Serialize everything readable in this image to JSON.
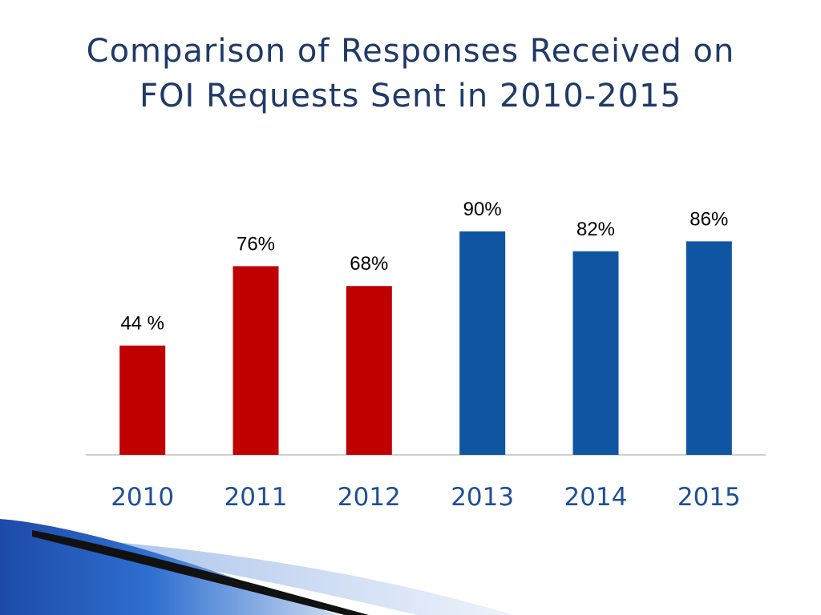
{
  "title": {
    "line1": "Comparison of Responses Received on",
    "line2": "FOI Requests Sent in 2010-2015"
  },
  "colors": {
    "title": "#1f3a68",
    "bar_red": "#c00000",
    "bar_blue": "#0f55a1",
    "axis_text": "#1d4f97",
    "axis_line": "#bfbfbf"
  },
  "chart_data": {
    "type": "bar",
    "title": "Comparison of Responses Received on FOI Requests Sent in 2010-2015",
    "categories": [
      "2010",
      "2011",
      "2012",
      "2013",
      "2014",
      "2015"
    ],
    "values": [
      44,
      76,
      68,
      90,
      82,
      86
    ],
    "data_labels": [
      "44 %",
      "76%",
      "68%",
      "90%",
      "82%",
      "86%"
    ],
    "bar_colors": [
      "#c00000",
      "#c00000",
      "#c00000",
      "#0f55a1",
      "#0f55a1",
      "#0f55a1"
    ],
    "xlabel": "",
    "ylabel": "",
    "ylim": [
      0,
      100
    ],
    "grid": false,
    "legend": "none"
  }
}
